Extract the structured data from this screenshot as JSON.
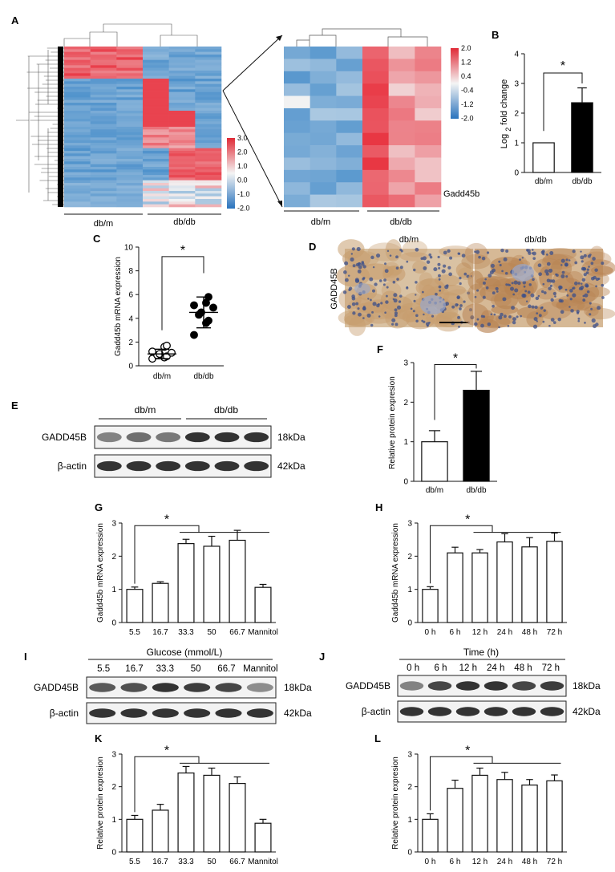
{
  "figure": {
    "panels": [
      "A",
      "B",
      "C",
      "D",
      "E",
      "F",
      "G",
      "H",
      "I",
      "J",
      "K",
      "L"
    ]
  },
  "heatmap": {
    "group_left": "db/m",
    "group_right": "db/db",
    "scale_full": [
      "3.0",
      "2.0",
      "1.0",
      "0.0",
      "-1.0",
      "-2.0"
    ],
    "scale_zoom": [
      "2.0",
      "1.2",
      "0.4",
      "-0.4",
      "-1.2",
      "-2.0"
    ],
    "gene_label": "Gadd45b",
    "colors": {
      "high": "#e8303d",
      "mid": "#f2f2f2",
      "low": "#2f7fc4"
    }
  },
  "chart_data": [
    {
      "id": "B",
      "type": "bar",
      "categories": [
        "db/m",
        "db/db"
      ],
      "values": [
        1.0,
        2.35
      ],
      "errors": [
        0,
        0.5
      ],
      "ylabel_parts": [
        "Log ",
        "2",
        " fold change"
      ],
      "ylim": [
        0,
        4
      ],
      "yticks": [
        "0",
        "1",
        "2",
        "3",
        "4"
      ],
      "significance": "*",
      "colors": [
        "#ffffff",
        "#000000"
      ]
    },
    {
      "id": "C",
      "type": "scatter",
      "categories": [
        "db/m",
        "db/db"
      ],
      "points": [
        [
          0.6,
          0.7,
          0.8,
          0.9,
          1.0,
          1.1,
          1.2,
          1.6,
          1.7
        ],
        [
          2.6,
          3.6,
          3.8,
          4.3,
          4.5,
          4.9,
          5.1,
          5.3,
          5.8
        ]
      ],
      "means": [
        1.0,
        4.5
      ],
      "sd": [
        0.4,
        1.3
      ],
      "ylabel": "Gadd45b mRNA expression",
      "ylim": [
        0,
        10
      ],
      "yticks": [
        "0",
        "2",
        "4",
        "6",
        "8",
        "10"
      ],
      "significance": "*"
    },
    {
      "id": "F",
      "type": "bar",
      "categories": [
        "db/m",
        "db/db"
      ],
      "values": [
        1.0,
        2.3
      ],
      "errors": [
        0.28,
        0.48
      ],
      "ylabel": "Relative protein expresion",
      "ylim": [
        0,
        3
      ],
      "yticks": [
        "0",
        "1",
        "2",
        "3"
      ],
      "significance": "*",
      "colors": [
        "#ffffff",
        "#000000"
      ]
    },
    {
      "id": "G",
      "type": "bar",
      "categories": [
        "5.5",
        "16.7",
        "33.3",
        "50",
        "66.7",
        "Mannitol"
      ],
      "values": [
        1.0,
        1.18,
        2.38,
        2.3,
        2.48,
        1.06
      ],
      "errors": [
        0.07,
        0.05,
        0.13,
        0.3,
        0.3,
        0.09
      ],
      "ylabel": "Gadd45b mRNA expression",
      "ylim": [
        0,
        3
      ],
      "yticks": [
        "0",
        "1",
        "2",
        "3"
      ],
      "significance": "*"
    },
    {
      "id": "H",
      "type": "bar",
      "categories": [
        "0 h",
        "6 h",
        "12 h",
        "24 h",
        "48 h",
        "72 h"
      ],
      "values": [
        1.0,
        2.1,
        2.1,
        2.43,
        2.28,
        2.45
      ],
      "errors": [
        0.08,
        0.17,
        0.1,
        0.25,
        0.28,
        0.25
      ],
      "ylabel": "Gadd45b mRNA expression",
      "ylim": [
        0,
        3
      ],
      "yticks": [
        "0",
        "1",
        "2",
        "3"
      ],
      "significance": "*"
    },
    {
      "id": "K",
      "type": "bar",
      "categories": [
        "5.5",
        "16.7",
        "33.3",
        "50",
        "66.7",
        "Mannitol"
      ],
      "values": [
        1.0,
        1.28,
        2.42,
        2.35,
        2.1,
        0.88
      ],
      "errors": [
        0.12,
        0.18,
        0.2,
        0.22,
        0.2,
        0.12
      ],
      "ylabel": "Relative protein expresion",
      "ylim": [
        0,
        3
      ],
      "yticks": [
        "0",
        "1",
        "2",
        "3"
      ],
      "significance": "*"
    },
    {
      "id": "L",
      "type": "bar",
      "categories": [
        "0 h",
        "6 h",
        "12 h",
        "24 h",
        "48 h",
        "72 h"
      ],
      "values": [
        1.0,
        1.95,
        2.35,
        2.22,
        2.05,
        2.18
      ],
      "errors": [
        0.17,
        0.25,
        0.22,
        0.22,
        0.17,
        0.18
      ],
      "ylabel": "Relative protein expresion",
      "ylim": [
        0,
        3
      ],
      "yticks": [
        "0",
        "1",
        "2",
        "3"
      ],
      "significance": "*"
    }
  ],
  "panel_D": {
    "columns": [
      "db/m",
      "db/db"
    ],
    "row_label": "GADD45B"
  },
  "panel_E": {
    "groups": [
      "db/m",
      "db/db"
    ],
    "rows": [
      {
        "label": "GADD45B",
        "size": "18kDa",
        "intensity": [
          0.55,
          0.65,
          0.6,
          0.95,
          0.95,
          0.95
        ]
      },
      {
        "label": "β-actin",
        "size": "42kDa",
        "intensity": [
          0.95,
          0.95,
          0.95,
          0.95,
          0.95,
          0.95
        ]
      }
    ]
  },
  "panel_I": {
    "header": "Glucose (mmol/L)",
    "lanes": [
      "5.5",
      "16.7",
      "33.3",
      "50",
      "66.7",
      "Mannitol"
    ],
    "rows": [
      {
        "label": "GADD45B",
        "size": "18kDa",
        "intensity": [
          0.75,
          0.8,
          0.95,
          0.9,
          0.85,
          0.5
        ]
      },
      {
        "label": "β-actin",
        "size": "42kDa",
        "intensity": [
          0.95,
          0.95,
          0.95,
          0.95,
          0.95,
          0.95
        ]
      }
    ]
  },
  "panel_J": {
    "header": "Time (h)",
    "lanes": [
      "0 h",
      "6 h",
      "12 h",
      "24 h",
      "48 h",
      "72 h"
    ],
    "rows": [
      {
        "label": "GADD45B",
        "size": "18kDa",
        "intensity": [
          0.55,
          0.85,
          0.95,
          0.95,
          0.85,
          0.9
        ]
      },
      {
        "label": "β-actin",
        "size": "42kDa",
        "intensity": [
          0.95,
          0.95,
          0.95,
          0.95,
          0.95,
          0.95
        ]
      }
    ]
  }
}
